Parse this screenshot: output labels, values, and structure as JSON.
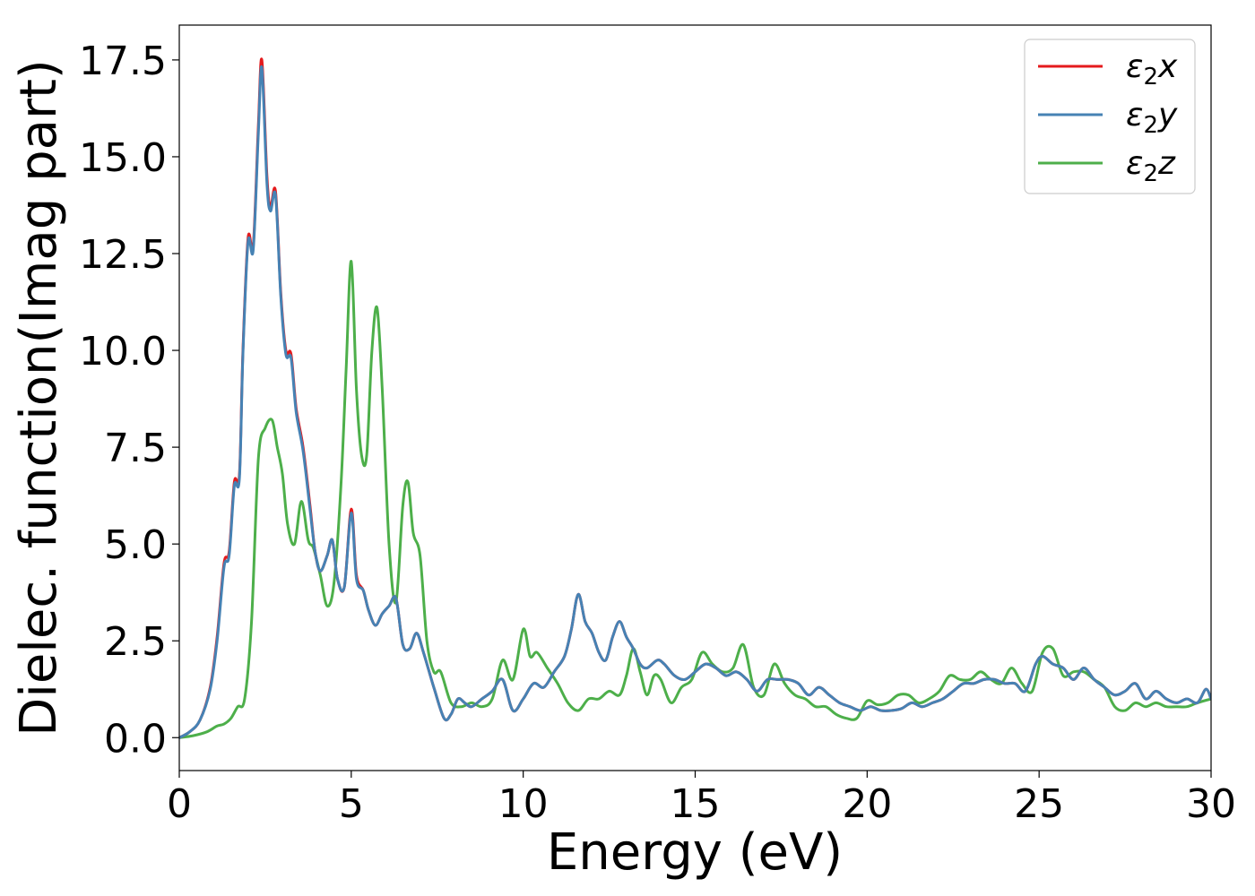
{
  "chart_data": {
    "type": "line",
    "xlabel": "Energy (eV)",
    "ylabel": "Dielec. function(Imag part)",
    "xlim": [
      0,
      30
    ],
    "ylim": [
      -0.85,
      18.4
    ],
    "xticks": [
      0,
      5,
      10,
      15,
      20,
      25,
      30
    ],
    "xtick_labels": [
      "0",
      "5",
      "10",
      "15",
      "20",
      "25",
      "30"
    ],
    "yticks": [
      0.0,
      2.5,
      5.0,
      7.5,
      10.0,
      12.5,
      15.0,
      17.5
    ],
    "ytick_labels": [
      "0.0",
      "2.5",
      "5.0",
      "7.5",
      "10.0",
      "12.5",
      "15.0",
      "17.5"
    ],
    "grid": false,
    "legend_position": "top-right",
    "series": [
      {
        "name": "ε2x",
        "legend_main": "ε",
        "legend_sub": "2",
        "legend_tail": "x",
        "color": "#e41a1c",
        "x": [
          0,
          0.3,
          0.6,
          0.9,
          1.1,
          1.3,
          1.45,
          1.6,
          1.75,
          1.85,
          2.0,
          2.15,
          2.3,
          2.4,
          2.55,
          2.65,
          2.8,
          2.95,
          3.1,
          3.25,
          3.4,
          3.6,
          3.8,
          3.95,
          4.1,
          4.3,
          4.45,
          4.6,
          4.8,
          5.0,
          5.15,
          5.35,
          5.5,
          5.7,
          5.9,
          6.1,
          6.3,
          6.5,
          6.7,
          6.9,
          7.1,
          7.4,
          7.7,
          7.9,
          8.1,
          8.3,
          8.5,
          8.8,
          9.1,
          9.4,
          9.7,
          10.0,
          10.3,
          10.6,
          10.9,
          11.2,
          11.4,
          11.6,
          11.8,
          12.0,
          12.2,
          12.4,
          12.6,
          12.8,
          13.0,
          13.2,
          13.4,
          13.6,
          13.9,
          14.1,
          14.4,
          14.7,
          15.0,
          15.3,
          15.6,
          15.9,
          16.2,
          16.5,
          16.8,
          17.1,
          17.4,
          17.7,
          18.0,
          18.3,
          18.6,
          18.9,
          19.2,
          19.5,
          19.8,
          20.1,
          20.4,
          20.7,
          21.0,
          21.3,
          21.6,
          21.9,
          22.2,
          22.5,
          22.8,
          23.1,
          23.4,
          23.7,
          24.0,
          24.3,
          24.6,
          24.9,
          25.1,
          25.4,
          25.7,
          26.0,
          26.3,
          26.6,
          26.9,
          27.2,
          27.5,
          27.8,
          28.1,
          28.4,
          28.7,
          29.0,
          29.3,
          29.6,
          29.85,
          30.0
        ],
        "y": [
          0.0,
          0.15,
          0.45,
          1.3,
          2.6,
          4.5,
          4.8,
          6.6,
          6.8,
          10.0,
          12.9,
          12.7,
          15.8,
          17.5,
          14.5,
          13.7,
          14.1,
          11.5,
          10.0,
          9.9,
          8.5,
          7.5,
          6.0,
          4.8,
          4.3,
          4.7,
          5.1,
          4.1,
          3.9,
          5.9,
          4.2,
          3.8,
          3.3,
          2.9,
          3.2,
          3.4,
          3.6,
          2.4,
          2.3,
          2.7,
          2.2,
          1.3,
          0.5,
          0.6,
          1.0,
          0.9,
          0.8,
          1.0,
          1.2,
          1.5,
          0.7,
          1.0,
          1.4,
          1.3,
          1.7,
          2.1,
          2.8,
          3.7,
          3.0,
          2.7,
          2.2,
          2.0,
          2.6,
          3.0,
          2.6,
          2.3,
          1.9,
          1.8,
          2.0,
          1.9,
          1.6,
          1.5,
          1.7,
          1.9,
          1.8,
          1.6,
          1.7,
          1.5,
          1.2,
          1.5,
          1.5,
          1.5,
          1.4,
          1.1,
          1.3,
          1.1,
          0.9,
          0.8,
          0.7,
          0.8,
          0.7,
          0.7,
          0.75,
          0.9,
          0.8,
          0.9,
          1.0,
          1.2,
          1.4,
          1.4,
          1.5,
          1.5,
          1.4,
          1.4,
          1.2,
          1.9,
          2.1,
          1.9,
          1.8,
          1.5,
          1.8,
          1.5,
          1.3,
          1.1,
          1.2,
          1.4,
          1.0,
          1.2,
          1.0,
          0.9,
          1.0,
          0.9,
          1.25,
          1.0
        ]
      },
      {
        "name": "ε2y",
        "legend_main": "ε",
        "legend_sub": "2",
        "legend_tail": "y",
        "color": "#4682b4",
        "x": [
          0,
          0.3,
          0.6,
          0.9,
          1.1,
          1.3,
          1.45,
          1.6,
          1.75,
          1.85,
          2.0,
          2.15,
          2.3,
          2.4,
          2.55,
          2.65,
          2.8,
          2.95,
          3.1,
          3.25,
          3.4,
          3.6,
          3.8,
          3.95,
          4.1,
          4.3,
          4.45,
          4.6,
          4.8,
          5.0,
          5.15,
          5.35,
          5.5,
          5.7,
          5.9,
          6.1,
          6.3,
          6.5,
          6.7,
          6.9,
          7.1,
          7.4,
          7.7,
          7.9,
          8.1,
          8.3,
          8.5,
          8.8,
          9.1,
          9.4,
          9.7,
          10.0,
          10.3,
          10.6,
          10.9,
          11.2,
          11.4,
          11.6,
          11.8,
          12.0,
          12.2,
          12.4,
          12.6,
          12.8,
          13.0,
          13.2,
          13.4,
          13.6,
          13.9,
          14.1,
          14.4,
          14.7,
          15.0,
          15.3,
          15.6,
          15.9,
          16.2,
          16.5,
          16.8,
          17.1,
          17.4,
          17.7,
          18.0,
          18.3,
          18.6,
          18.9,
          19.2,
          19.5,
          19.8,
          20.1,
          20.4,
          20.7,
          21.0,
          21.3,
          21.6,
          21.9,
          22.2,
          22.5,
          22.8,
          23.1,
          23.4,
          23.7,
          24.0,
          24.3,
          24.6,
          24.9,
          25.1,
          25.4,
          25.7,
          26.0,
          26.3,
          26.6,
          26.9,
          27.2,
          27.5,
          27.8,
          28.1,
          28.4,
          28.7,
          29.0,
          29.3,
          29.6,
          29.85,
          30.0
        ],
        "y": [
          0.0,
          0.15,
          0.45,
          1.25,
          2.5,
          4.4,
          4.7,
          6.5,
          6.7,
          9.9,
          12.8,
          12.6,
          15.6,
          17.3,
          14.3,
          13.6,
          14.0,
          11.4,
          9.9,
          9.8,
          8.4,
          7.4,
          5.9,
          4.8,
          4.3,
          4.7,
          5.1,
          4.1,
          3.9,
          5.8,
          4.1,
          3.8,
          3.3,
          2.9,
          3.2,
          3.4,
          3.6,
          2.4,
          2.3,
          2.7,
          2.2,
          1.3,
          0.5,
          0.6,
          1.0,
          0.9,
          0.8,
          1.0,
          1.2,
          1.5,
          0.7,
          1.0,
          1.4,
          1.3,
          1.7,
          2.1,
          2.8,
          3.7,
          3.0,
          2.7,
          2.2,
          2.0,
          2.6,
          3.0,
          2.6,
          2.3,
          1.9,
          1.8,
          2.0,
          1.9,
          1.6,
          1.5,
          1.7,
          1.9,
          1.8,
          1.6,
          1.7,
          1.5,
          1.2,
          1.5,
          1.5,
          1.5,
          1.4,
          1.1,
          1.3,
          1.1,
          0.9,
          0.8,
          0.7,
          0.8,
          0.7,
          0.7,
          0.75,
          0.9,
          0.8,
          0.9,
          1.0,
          1.2,
          1.4,
          1.4,
          1.5,
          1.5,
          1.4,
          1.4,
          1.2,
          1.9,
          2.1,
          1.9,
          1.8,
          1.5,
          1.8,
          1.5,
          1.3,
          1.1,
          1.2,
          1.4,
          1.0,
          1.2,
          1.0,
          0.9,
          1.0,
          0.9,
          1.25,
          1.0
        ]
      },
      {
        "name": "ε2z",
        "legend_main": "ε",
        "legend_sub": "2",
        "legend_tail": "z",
        "color": "#4daf4a",
        "x": [
          0,
          0.4,
          0.8,
          1.1,
          1.3,
          1.5,
          1.7,
          1.9,
          2.1,
          2.3,
          2.5,
          2.7,
          2.85,
          3.0,
          3.15,
          3.35,
          3.55,
          3.75,
          3.9,
          4.1,
          4.3,
          4.5,
          4.7,
          4.85,
          5.0,
          5.15,
          5.3,
          5.45,
          5.6,
          5.75,
          5.9,
          6.1,
          6.3,
          6.5,
          6.65,
          6.8,
          7.0,
          7.2,
          7.4,
          7.6,
          7.9,
          8.2,
          8.5,
          8.8,
          9.1,
          9.4,
          9.7,
          10.0,
          10.2,
          10.4,
          10.7,
          11.0,
          11.3,
          11.6,
          11.9,
          12.2,
          12.5,
          12.8,
          13.0,
          13.2,
          13.4,
          13.6,
          13.8,
          14.0,
          14.3,
          14.6,
          14.9,
          15.2,
          15.5,
          15.8,
          16.1,
          16.4,
          16.7,
          17.0,
          17.3,
          17.6,
          17.9,
          18.2,
          18.5,
          18.8,
          19.1,
          19.4,
          19.7,
          20.0,
          20.3,
          20.6,
          20.9,
          21.2,
          21.5,
          21.8,
          22.1,
          22.4,
          22.7,
          23.0,
          23.3,
          23.6,
          23.9,
          24.2,
          24.5,
          24.8,
          25.1,
          25.4,
          25.7,
          26.0,
          26.3,
          26.6,
          26.9,
          27.2,
          27.5,
          27.8,
          28.1,
          28.4,
          28.7,
          29.0,
          29.3,
          29.6,
          30.0
        ],
        "y": [
          0.0,
          0.05,
          0.15,
          0.3,
          0.35,
          0.5,
          0.8,
          1.0,
          3.0,
          7.2,
          8.0,
          8.2,
          7.5,
          6.8,
          5.5,
          5.0,
          6.1,
          5.1,
          4.9,
          4.2,
          3.4,
          4.0,
          6.5,
          9.5,
          12.3,
          9.0,
          7.3,
          7.3,
          10.0,
          11.1,
          9.0,
          5.0,
          3.5,
          6.0,
          6.6,
          5.3,
          4.7,
          2.5,
          1.7,
          1.7,
          0.9,
          0.8,
          0.9,
          0.8,
          1.0,
          2.0,
          1.5,
          2.8,
          2.1,
          2.2,
          1.8,
          1.4,
          0.9,
          0.7,
          1.0,
          1.0,
          1.2,
          1.1,
          1.6,
          2.3,
          1.7,
          1.1,
          1.6,
          1.5,
          0.9,
          1.3,
          1.5,
          2.2,
          1.9,
          1.7,
          1.8,
          2.4,
          1.3,
          1.1,
          1.9,
          1.4,
          1.1,
          1.0,
          0.8,
          0.8,
          0.6,
          0.5,
          0.5,
          0.95,
          0.85,
          0.9,
          1.1,
          1.1,
          0.9,
          1.0,
          1.2,
          1.6,
          1.5,
          1.5,
          1.7,
          1.5,
          1.4,
          1.8,
          1.4,
          1.2,
          2.2,
          2.3,
          1.6,
          1.7,
          1.7,
          1.5,
          1.3,
          0.8,
          0.7,
          0.9,
          0.8,
          0.9,
          0.8,
          0.8,
          0.8,
          0.9,
          1.0
        ]
      }
    ]
  }
}
